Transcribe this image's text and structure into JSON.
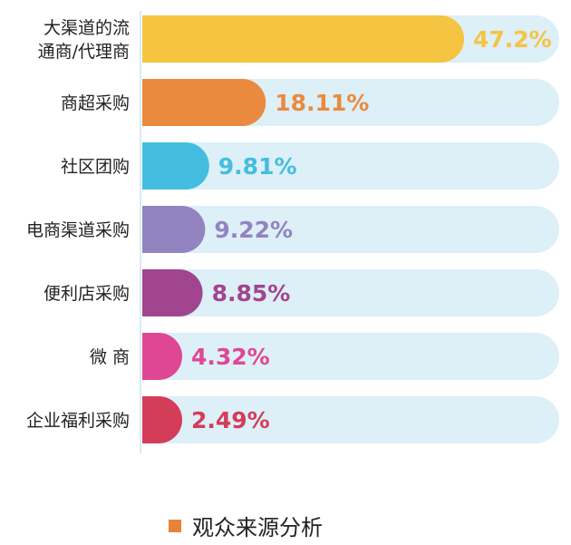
{
  "chart_data": {
    "type": "bar",
    "orientation": "horizontal",
    "categories": [
      [
        "大渠道的流",
        "通商/代理商"
      ],
      [
        "商超采购"
      ],
      [
        "社区团购"
      ],
      [
        "电商渠道采购"
      ],
      [
        "便利店采购"
      ],
      [
        "微 商"
      ],
      [
        "企业福利采购"
      ]
    ],
    "values": [
      47.2,
      18.11,
      9.81,
      9.22,
      8.85,
      4.32,
      2.49
    ],
    "value_labels": [
      "47.2%",
      "18.11%",
      "9.81%",
      "9.22%",
      "8.85%",
      "4.32%",
      "2.49%"
    ],
    "colors": [
      "#f5c441",
      "#ea8a3f",
      "#45bde0",
      "#9284c0",
      "#a2458f",
      "#df4794",
      "#d43d58"
    ],
    "track_color": "#ddeff7",
    "xlim": [
      0,
      47.2
    ],
    "legend": {
      "label": "观众来源分析",
      "color": "#e8843a",
      "position": "bottom"
    }
  }
}
